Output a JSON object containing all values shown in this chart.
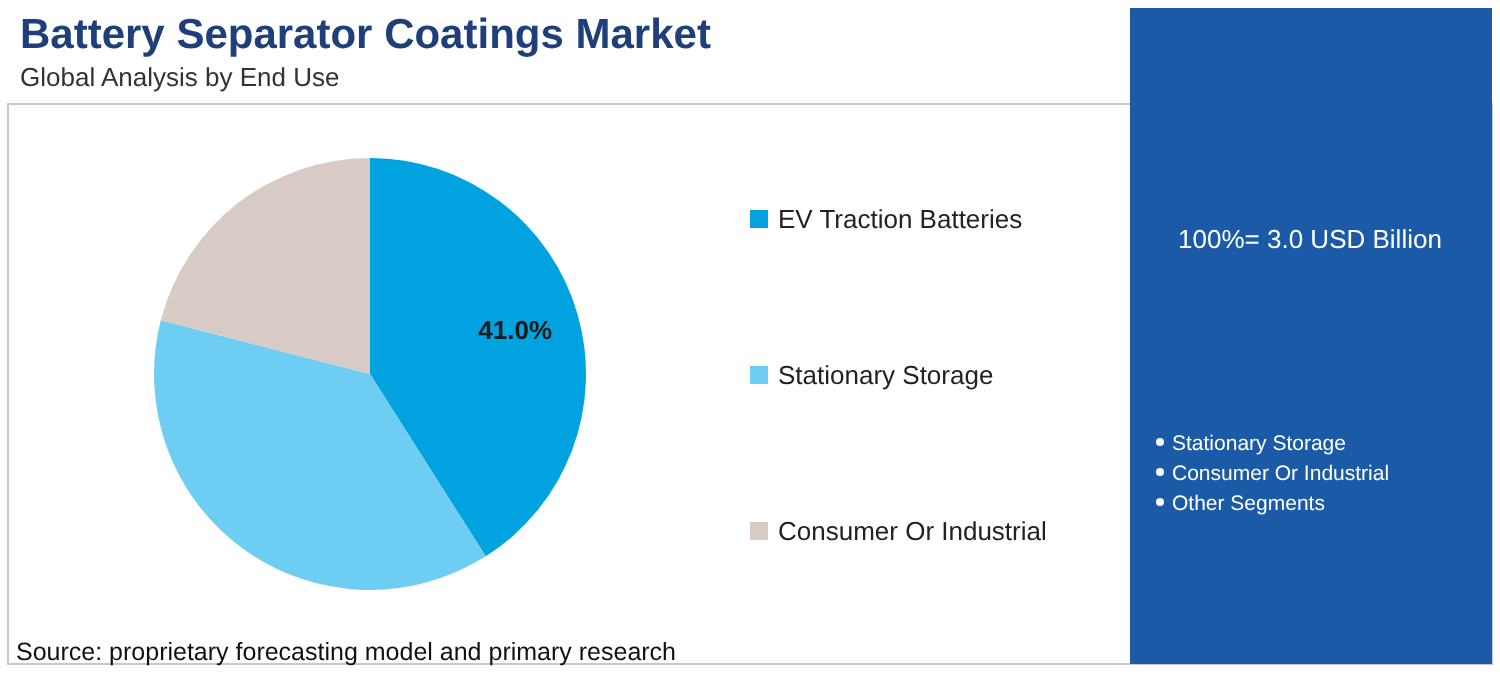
{
  "chart_data": {
    "type": "pie",
    "title": "Battery Separator Coatings Market",
    "subtitle": "Global Analysis by End Use",
    "categories": [
      "EV Traction Batteries",
      "Stationary Storage",
      "Consumer Or Industrial"
    ],
    "values": [
      41,
      38,
      21
    ],
    "colors": [
      "#00a3e0",
      "#6dcdf3",
      "#d8cbc6"
    ],
    "value_labels": [
      "41.0%",
      null,
      null
    ],
    "legend": "right",
    "annotations": [
      "100%= 3.0 USD Billion",
      "Stationary Storage",
      "Consumer Or Industrial",
      "Other Segments",
      "Source: proprietary forecasting model and primary research"
    ]
  }
}
